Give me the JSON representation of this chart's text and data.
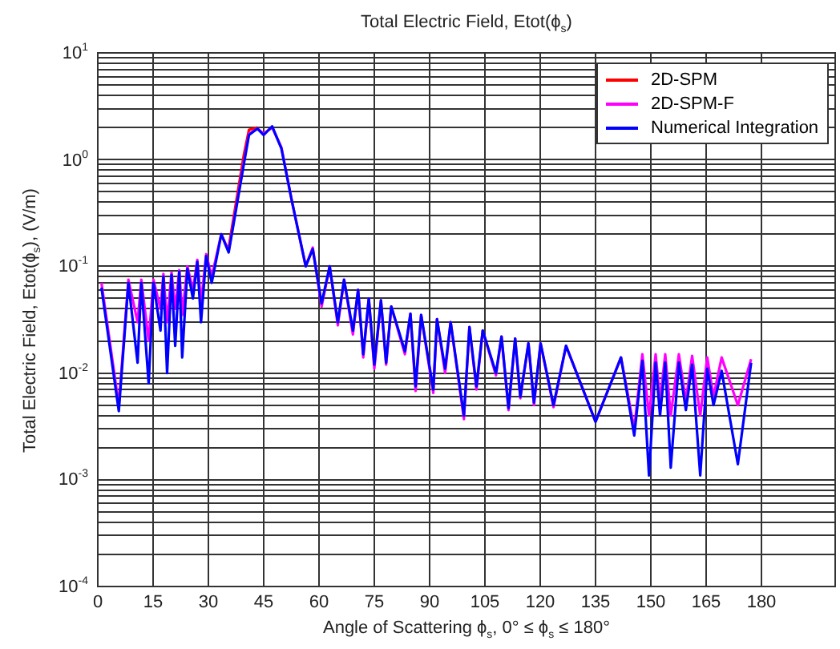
{
  "chart_data": {
    "type": "line",
    "title": "Total Electric Field, Etot(ϕ$_{s}$)",
    "xlabel": "Angle of Scattering ϕ$_{s}$, 0° ≤ ϕ$_{s}$ ≤ 180°",
    "ylabel": "Total Electric Field, Etot(ϕ$_{s}$), (V/m)",
    "x": [
      1,
      5.7,
      8.3,
      10.8,
      11.8,
      13.8,
      15.1,
      17,
      17.8,
      18.8,
      20,
      21,
      22.1,
      22.9,
      24.3,
      25.8,
      27,
      28,
      29.4,
      30.9,
      33.5,
      35.5,
      39.6,
      41,
      43.3,
      45,
      47.3,
      49.8,
      52.7,
      56.4,
      58.3,
      60.7,
      62.9,
      65.1,
      66.8,
      69.2,
      70.6,
      72,
      73.5,
      75,
      76.8,
      78.2,
      79.6,
      83.3,
      84.8,
      86.2,
      87.7,
      91,
      92,
      94.2,
      95.7,
      99.3,
      100.8,
      102.7,
      104.4,
      108,
      109.5,
      111.4,
      113.2,
      114.6,
      116.8,
      118.3,
      120.1,
      123.6,
      127,
      135,
      141.9,
      145.5,
      147.7,
      149.5,
      151.3,
      152.5,
      153.9,
      155.4,
      157.6,
      159.5,
      161.2,
      163.4,
      165.3,
      167,
      169.2,
      173.6,
      177.2
    ],
    "series": [
      {
        "name": "2D-SPM",
        "color": "#ff0000",
        "values": [
          null,
          null,
          null,
          null,
          null,
          null,
          null,
          null,
          null,
          null,
          null,
          null,
          null,
          null,
          null,
          null,
          null,
          null,
          null,
          null,
          null,
          0.15,
          1.1,
          1.9,
          2.0,
          null,
          null,
          null,
          null,
          null,
          null,
          null,
          null,
          null,
          null,
          null,
          null,
          null,
          null,
          null,
          null,
          null,
          null,
          null,
          null,
          null,
          null,
          null,
          null,
          null,
          null,
          null,
          null,
          null,
          null,
          null,
          null,
          null,
          null,
          null,
          null,
          null,
          null,
          null,
          null,
          null,
          null,
          null,
          null,
          null,
          null,
          null,
          null,
          null,
          null,
          null,
          null,
          null,
          null,
          null,
          null,
          null,
          null
        ]
      },
      {
        "name": "2D-SPM-F",
        "color": "#ff00ff",
        "values": [
          0.07,
          0.005,
          0.075,
          0.03,
          0.075,
          0.02,
          0.075,
          0.04,
          0.085,
          0.03,
          0.088,
          0.04,
          0.092,
          0.035,
          0.1,
          0.06,
          0.115,
          0.045,
          0.13,
          0.08,
          0.2,
          0.14,
          0.95,
          1.75,
          1.95,
          1.75,
          2.0,
          1.3,
          0.4,
          0.1,
          0.15,
          0.042,
          0.1,
          0.028,
          0.075,
          0.023,
          0.06,
          0.014,
          0.05,
          0.011,
          0.048,
          0.012,
          0.042,
          0.015,
          0.036,
          0.0068,
          0.035,
          0.0065,
          0.032,
          0.01,
          0.03,
          0.0037,
          0.027,
          0.007,
          0.025,
          0.0095,
          0.022,
          0.0045,
          0.021,
          0.0058,
          0.019,
          0.005,
          0.019,
          0.0048,
          0.018,
          0.0035,
          0.014,
          0.003,
          0.015,
          0.004,
          0.015,
          0.0055,
          0.015,
          0.004,
          0.015,
          0.0055,
          0.0145,
          0.004,
          0.014,
          0.006,
          0.014,
          0.005,
          0.0135
        ]
      },
      {
        "name": "Numerical Integration",
        "color": "#0000ff",
        "values": [
          0.063,
          0.0044,
          0.07,
          0.0125,
          0.07,
          0.008,
          0.07,
          0.025,
          0.08,
          0.01,
          0.083,
          0.018,
          0.089,
          0.014,
          0.095,
          0.05,
          0.11,
          0.03,
          0.125,
          0.07,
          0.2,
          0.135,
          0.9,
          1.7,
          1.95,
          1.7,
          2.05,
          1.27,
          0.4,
          0.1,
          0.145,
          0.045,
          0.1,
          0.03,
          0.075,
          0.025,
          0.06,
          0.015,
          0.05,
          0.012,
          0.048,
          0.0125,
          0.042,
          0.016,
          0.036,
          0.0075,
          0.035,
          0.007,
          0.032,
          0.011,
          0.03,
          0.004,
          0.027,
          0.0075,
          0.025,
          0.01,
          0.022,
          0.0047,
          0.021,
          0.006,
          0.019,
          0.0053,
          0.019,
          0.005,
          0.018,
          0.0035,
          0.014,
          0.0026,
          0.013,
          0.0011,
          0.0125,
          0.004,
          0.0125,
          0.0013,
          0.0125,
          0.0045,
          0.012,
          0.0011,
          0.011,
          0.005,
          0.0105,
          0.0014,
          0.0125
        ]
      }
    ],
    "xlim": [
      0,
      200
    ],
    "xticks": [
      0,
      15,
      30,
      45,
      60,
      75,
      90,
      105,
      120,
      135,
      150,
      165,
      180
    ],
    "ylim": [
      0.0001,
      10
    ],
    "log": true,
    "yticks": [
      {
        "value": 0.0001,
        "label": "10$^{-4}$"
      },
      {
        "value": 0.0002,
        "label": null
      },
      {
        "value": 0.0003,
        "label": null
      },
      {
        "value": 0.0004,
        "label": null
      },
      {
        "value": 0.0005,
        "label": null
      },
      {
        "value": 0.0006,
        "label": null
      },
      {
        "value": 0.0007,
        "label": null
      },
      {
        "value": 0.0008,
        "label": null
      },
      {
        "value": 0.0009,
        "label": null
      },
      {
        "value": 0.001,
        "label": "10$^{-3}$"
      },
      {
        "value": 0.002,
        "label": null
      },
      {
        "value": 0.003,
        "label": null
      },
      {
        "value": 0.004,
        "label": null
      },
      {
        "value": 0.005,
        "label": null
      },
      {
        "value": 0.006,
        "label": null
      },
      {
        "value": 0.007,
        "label": null
      },
      {
        "value": 0.008,
        "label": null
      },
      {
        "value": 0.009,
        "label": null
      },
      {
        "value": 0.01,
        "label": "10$^{-2}$"
      },
      {
        "value": 0.02,
        "label": null
      },
      {
        "value": 0.03,
        "label": null
      },
      {
        "value": 0.04,
        "label": null
      },
      {
        "value": 0.05,
        "label": null
      },
      {
        "value": 0.06,
        "label": null
      },
      {
        "value": 0.07,
        "label": null
      },
      {
        "value": 0.08,
        "label": null
      },
      {
        "value": 0.09,
        "label": null
      },
      {
        "value": 0.1,
        "label": "10$^{-1}$"
      },
      {
        "value": 0.2,
        "label": null
      },
      {
        "value": 0.3,
        "label": null
      },
      {
        "value": 0.4,
        "label": null
      },
      {
        "value": 0.5,
        "label": null
      },
      {
        "value": 0.6,
        "label": null
      },
      {
        "value": 0.7,
        "label": null
      },
      {
        "value": 0.8,
        "label": null
      },
      {
        "value": 0.9,
        "label": null
      },
      {
        "value": 1,
        "label": "10$^{0}$"
      },
      {
        "value": 2,
        "label": null
      },
      {
        "value": 3,
        "label": null
      },
      {
        "value": 4,
        "label": null
      },
      {
        "value": 5,
        "label": null
      },
      {
        "value": 6,
        "label": null
      },
      {
        "value": 7,
        "label": null
      },
      {
        "value": 8,
        "label": null
      },
      {
        "value": 9,
        "label": null
      },
      {
        "value": 10,
        "label": "10$^{1}$"
      }
    ],
    "grid": true,
    "legend": "top right",
    "marker": "none",
    "line_style": "solid"
  }
}
